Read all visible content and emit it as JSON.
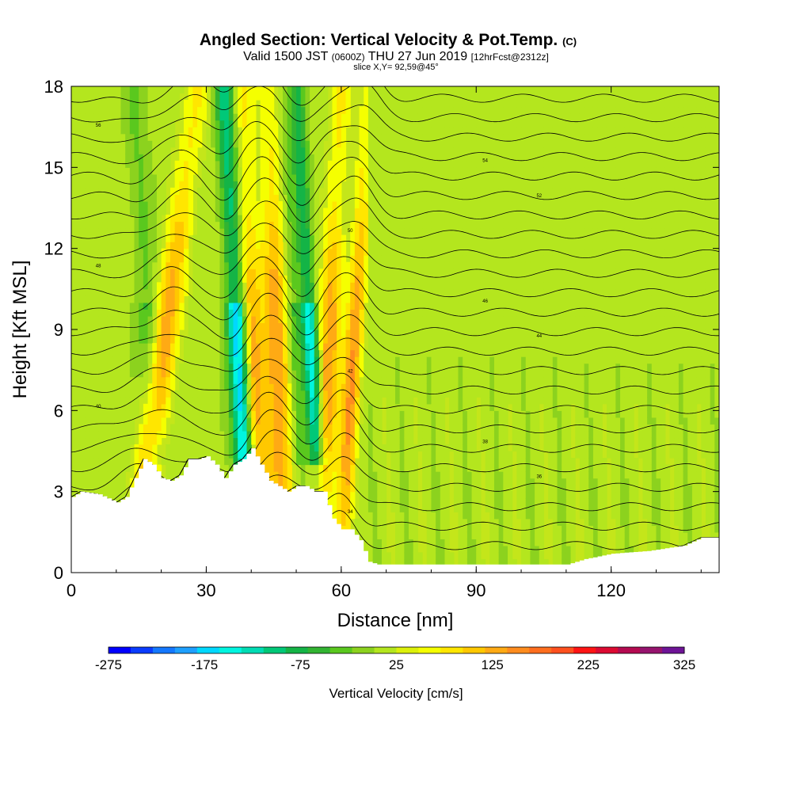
{
  "chart_data": {
    "type": "heatmap",
    "title": "Angled Section: Vertical Velocity & Pot.Temp.",
    "title_units": "(C)",
    "subtitle_valid": "Valid 1500 JST",
    "subtitle_utc": "(0600Z)",
    "subtitle_date": "THU 27 Jun 2019",
    "subtitle_fcst": "[12hrFcst@2312z]",
    "subtitle_slice": "slice X,Y= 92,59@45°",
    "xlabel": "Distance [nm]",
    "ylabel": "Height [Kft MSL]",
    "xlim": [
      0,
      144
    ],
    "ylim": [
      0,
      18
    ],
    "x_ticks": [
      "0",
      "30",
      "60",
      "90",
      "120"
    ],
    "y_ticks": [
      "0",
      "3",
      "6",
      "9",
      "12",
      "15",
      "18"
    ],
    "colorbar": {
      "label": "Vertical Velocity [cm/s]",
      "tick_labels": [
        "-275",
        "-175",
        "-75",
        "25",
        "125",
        "225",
        "325"
      ],
      "colors": [
        "#0000ff",
        "#0a3cff",
        "#1478ff",
        "#1ea0ff",
        "#00d8ff",
        "#00f5e0",
        "#00dcb4",
        "#00c878",
        "#14b446",
        "#32b432",
        "#5ac81e",
        "#8cd21e",
        "#b4e61e",
        "#dcf00a",
        "#f5ff00",
        "#ffe600",
        "#ffc800",
        "#ffaa14",
        "#ff8c1e",
        "#ff6e1e",
        "#ff501e",
        "#ff1414",
        "#dc0a32",
        "#b40a50",
        "#96146e",
        "#6e1496"
      ]
    },
    "updraft_bands": [
      {
        "x_bottom": 14,
        "x_top": 28,
        "w": 3.2
      },
      {
        "x_bottom": 42,
        "x_top": 38,
        "w": 2.5
      },
      {
        "x_bottom": 47,
        "x_top": 44,
        "w": 2.8
      },
      {
        "x_bottom": 55,
        "x_top": 60,
        "w": 2.5
      },
      {
        "x_bottom": 60,
        "x_top": 66,
        "w": 2.0
      }
    ],
    "downdraft_bands": [
      {
        "x_bottom": 40,
        "x_top": 34,
        "w": 2.2,
        "strength": 1.0
      },
      {
        "x_bottom": 56,
        "x_top": 50,
        "w": 1.8,
        "strength": 0.8
      },
      {
        "x_bottom": 20,
        "x_top": 14,
        "w": 2.5,
        "strength": 0.3
      },
      {
        "x_bottom": 52,
        "x_top": 47,
        "w": 1.5,
        "strength": 0.3
      }
    ],
    "terrain": [
      [
        0,
        2.8
      ],
      [
        2,
        3.0
      ],
      [
        6,
        2.9
      ],
      [
        10,
        2.6
      ],
      [
        12,
        2.8
      ],
      [
        14,
        3.5
      ],
      [
        16,
        4.2
      ],
      [
        18,
        4.0
      ],
      [
        20,
        3.5
      ],
      [
        22,
        3.4
      ],
      [
        24,
        3.6
      ],
      [
        26,
        4.2
      ],
      [
        28,
        4.2
      ],
      [
        30,
        4.3
      ],
      [
        32,
        4.0
      ],
      [
        34,
        3.5
      ],
      [
        36,
        4.0
      ],
      [
        38,
        4.2
      ],
      [
        40,
        4.6
      ],
      [
        42,
        4.0
      ],
      [
        44,
        3.4
      ],
      [
        46,
        3.2
      ],
      [
        48,
        3.0
      ],
      [
        50,
        3.2
      ],
      [
        52,
        3.2
      ],
      [
        54,
        3.0
      ],
      [
        56,
        3.0
      ],
      [
        58,
        2.0
      ],
      [
        60,
        1.6
      ],
      [
        62,
        1.6
      ],
      [
        64,
        1.2
      ],
      [
        66,
        0.4
      ],
      [
        68,
        0.3
      ],
      [
        110,
        0.3
      ],
      [
        114,
        0.5
      ],
      [
        120,
        0.7
      ],
      [
        128,
        0.8
      ],
      [
        136,
        1.0
      ],
      [
        140,
        1.3
      ],
      [
        144,
        1.3
      ]
    ],
    "theta_contour_labels": [
      "56",
      "54",
      "52",
      "50",
      "48",
      "46",
      "44",
      "42",
      "40",
      "38",
      "36",
      "34"
    ]
  }
}
